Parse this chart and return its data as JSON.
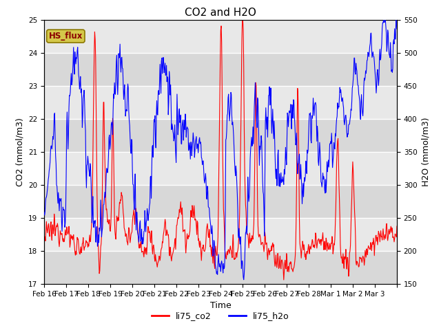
{
  "title": "CO2 and H2O",
  "xlabel": "Time",
  "ylabel_left": "CO2 (mmol/m3)",
  "ylabel_right": "H2O (mmol/m3)",
  "ylim_left": [
    17.0,
    25.0
  ],
  "ylim_right": [
    150,
    550
  ],
  "yticks_left": [
    17.0,
    18.0,
    19.0,
    20.0,
    21.0,
    22.0,
    23.0,
    24.0,
    25.0
  ],
  "yticks_right": [
    150,
    200,
    250,
    300,
    350,
    400,
    450,
    500,
    550
  ],
  "xtick_labels": [
    "Feb 16",
    "Feb 17",
    "Feb 18",
    "Feb 19",
    "Feb 20",
    "Feb 21",
    "Feb 22",
    "Feb 23",
    "Feb 24",
    "Feb 25",
    "Feb 26",
    "Feb 27",
    "Feb 28",
    "Mar 1",
    "Mar 2",
    "Mar 3"
  ],
  "annotation_text": "HS_flux",
  "annotation_bg": "#d4c84a",
  "annotation_border": "#8b7700",
  "legend_labels": [
    "li75_co2",
    "li75_h2o"
  ],
  "line_colors": [
    "red",
    "blue"
  ],
  "background_color": "#e0e0e0",
  "plot_bg_light": "#efefef",
  "title_fontsize": 11,
  "axis_label_fontsize": 9,
  "tick_fontsize": 7.5
}
